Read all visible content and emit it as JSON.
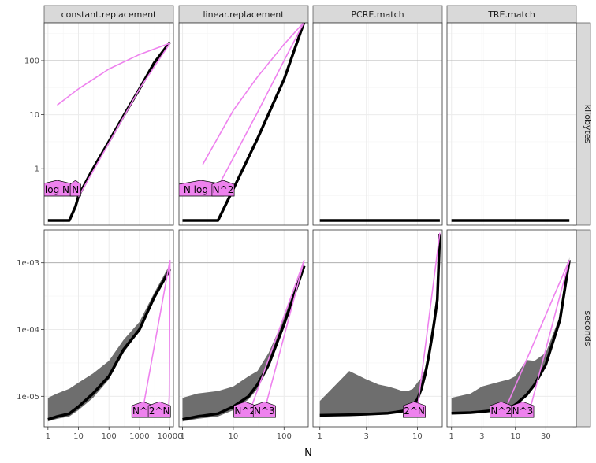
{
  "colors": {
    "strip_fill": "#d9d9d9",
    "panel_border": "#333333",
    "grid_major": "#ebebeb",
    "grid_minor": "#f5f5f5",
    "ref_line": "#b3b3b3",
    "data_line": "#000000",
    "ribbon": "#6e6e6e",
    "asymptote": "#ee82ee",
    "label_fill": "#ee82ee"
  },
  "chart_data": {
    "type": "line",
    "xlabel": "N",
    "x_scale": "log10",
    "y_scale": "log10",
    "columns": [
      "constant.replacement",
      "linear.replacement",
      "PCRE.match",
      "TRE.match"
    ],
    "rows": [
      "kilobytes",
      "seconds"
    ],
    "x_ticks": {
      "constant.replacement": [
        "1",
        "10",
        "100",
        "1000",
        "10000"
      ],
      "linear.replacement": [
        "1",
        "10",
        "100"
      ],
      "PCRE.match": [
        "1",
        "3",
        "10"
      ],
      "TRE.match": [
        "1",
        "3",
        "10",
        "30"
      ]
    },
    "x_limits": {
      "constant.replacement": [
        0.75,
        13000
      ],
      "linear.replacement": [
        0.85,
        300
      ],
      "PCRE.match": [
        0.85,
        18
      ],
      "TRE.match": [
        0.85,
        90
      ]
    },
    "y_ticks": {
      "kilobytes": [
        "1",
        "10",
        "100"
      ],
      "seconds": [
        "1e-05",
        "1e-04",
        "1e-03"
      ]
    },
    "y_limits": {
      "kilobytes": [
        0.09,
        500
      ],
      "seconds": [
        3.5e-06,
        0.0031
      ]
    },
    "panels": [
      {
        "col": "constant.replacement",
        "row": "kilobytes",
        "measured": {
          "x": [
            1,
            3,
            5,
            8,
            10,
            30,
            100,
            300,
            1000,
            3000,
            10000
          ],
          "y": [
            0.11,
            0.11,
            0.11,
            0.2,
            0.31,
            1.0,
            3.2,
            9.5,
            30,
            90,
            220
          ]
        },
        "asymptotes": [
          {
            "name": "log N",
            "x": [
              2,
              10,
              100,
              1000,
              10000
            ],
            "y": [
              15,
              30,
              70,
              130,
              210
            ]
          },
          {
            "name": "N",
            "x": [
              10,
              100,
              1000,
              10000
            ],
            "y": [
              0.3,
              3,
              30,
              210
            ]
          }
        ],
        "labels": [
          {
            "text": "log N",
            "x": 2,
            "y": 0.45
          },
          {
            "text": "N",
            "x": 8,
            "y": 0.45
          }
        ]
      },
      {
        "col": "linear.replacement",
        "row": "kilobytes",
        "measured": {
          "x": [
            1,
            3,
            5,
            10,
            30,
            100,
            250
          ],
          "y": [
            0.11,
            0.11,
            0.11,
            0.42,
            3.6,
            45,
            520
          ]
        },
        "asymptotes": [
          {
            "name": "N log N",
            "x": [
              2.5,
              10,
              30,
              100,
              250
            ],
            "y": [
              1.2,
              12,
              50,
              200,
              520
            ]
          },
          {
            "name": "N^2",
            "x": [
              5.5,
              30,
              100,
              250
            ],
            "y": [
              0.55,
              11,
              100,
              520
            ]
          }
        ],
        "labels": [
          {
            "text": "N log N",
            "x": 2.3,
            "y": 0.45
          },
          {
            "text": "N^2",
            "x": 6.3,
            "y": 0.45
          }
        ]
      },
      {
        "col": "PCRE.match",
        "row": "kilobytes",
        "measured": {
          "x": [
            1,
            17
          ],
          "y": [
            0.11,
            0.11
          ]
        },
        "asymptotes": [],
        "labels": []
      },
      {
        "col": "TRE.match",
        "row": "kilobytes",
        "measured": {
          "x": [
            1,
            70
          ],
          "y": [
            0.11,
            0.11
          ]
        },
        "asymptotes": [],
        "labels": []
      },
      {
        "col": "constant.replacement",
        "row": "seconds",
        "measured": {
          "x": [
            1,
            2,
            5,
            10,
            30,
            100,
            300,
            1000,
            3000,
            10000
          ],
          "y": [
            4.5e-06,
            5e-06,
            5.5e-06,
            7e-06,
            1.1e-05,
            2e-05,
            5e-05,
            0.0001,
            0.0003,
            0.0008
          ]
        },
        "ribbon": {
          "x": [
            1,
            2,
            5,
            10,
            30,
            100,
            300,
            1000,
            3000,
            10000
          ],
          "lo": [
            4.2e-06,
            4.6e-06,
            5e-06,
            6.2e-06,
            9.5e-06,
            1.8e-05,
            4.5e-05,
            9.5e-05,
            0.00028,
            0.00075
          ],
          "hi": [
            9.5e-06,
            1.1e-05,
            1.3e-05,
            1.6e-05,
            2.2e-05,
            3.4e-05,
            7e-05,
            0.00013,
            0.00035,
            0.00095
          ]
        },
        "asymptotes": [
          {
            "name": "N^3",
            "x": [
              1300,
              10000
            ],
            "y": [
              6.5e-06,
              0.0011
            ]
          },
          {
            "name": "2^N",
            "x": [
              9000,
              9500,
              10000
            ],
            "y": [
              6.5e-06,
              1e-05,
              0.0011
            ]
          }
        ],
        "labels": [
          {
            "text": "N^3",
            "x": 1300,
            "y": 6.5e-06
          },
          {
            "text": "2^N",
            "x": 4500,
            "y": 6.5e-06
          }
        ]
      },
      {
        "col": "linear.replacement",
        "row": "seconds",
        "measured": {
          "x": [
            1,
            2,
            5,
            10,
            20,
            30,
            50,
            100,
            250
          ],
          "y": [
            4.5e-06,
            5e-06,
            5.5e-06,
            7e-06,
            1e-05,
            1.5e-05,
            3e-05,
            0.00012,
            0.0009
          ]
        },
        "ribbon": {
          "x": [
            1,
            2,
            5,
            10,
            20,
            30,
            50,
            100,
            250
          ],
          "lo": [
            4.2e-06,
            4.6e-06,
            5e-06,
            6.2e-06,
            9e-06,
            1.3e-05,
            2.7e-05,
            0.00011,
            0.00085
          ],
          "hi": [
            9.5e-06,
            1.1e-05,
            1.2e-05,
            1.4e-05,
            2e-05,
            2.4e-05,
            4.5e-05,
            0.00015,
            0.001
          ]
        },
        "asymptotes": [
          {
            "name": "N^2",
            "x": [
              22,
              250
            ],
            "y": [
              6.5e-06,
              0.0011
            ]
          },
          {
            "name": "N^3",
            "x": [
              42,
              250
            ],
            "y": [
              6.5e-06,
              0.0011
            ]
          }
        ],
        "labels": [
          {
            "text": "N^2",
            "x": 17,
            "y": 6.5e-06
          },
          {
            "text": "N^3",
            "x": 41,
            "y": 6.5e-06
          }
        ]
      },
      {
        "col": "PCRE.match",
        "row": "seconds",
        "measured": {
          "x": [
            1,
            2,
            3,
            4,
            5,
            6,
            7,
            8,
            9,
            10,
            11,
            12,
            13,
            14,
            15,
            16,
            17
          ],
          "y": [
            5.2e-06,
            5.3e-06,
            5.4e-06,
            5.5e-06,
            5.6e-06,
            5.8e-06,
            6e-06,
            6.5e-06,
            7.5e-06,
            9e-06,
            1.3e-05,
            2.1e-05,
            3.8e-05,
            7.2e-05,
            0.00014,
            0.00028,
            0.0027
          ]
        },
        "ribbon": {
          "x": [
            1,
            2,
            3,
            4,
            5,
            6,
            7,
            8,
            9,
            10,
            11,
            12,
            13,
            14,
            15,
            16,
            17
          ],
          "lo": [
            5e-06,
            5.1e-06,
            5.2e-06,
            5.3e-06,
            5.4e-06,
            5.6e-06,
            5.8e-06,
            6.2e-06,
            7.2e-06,
            8.6e-06,
            1.25e-05,
            2e-05,
            3.7e-05,
            7e-05,
            0.000137,
            0.000275,
            0.0026
          ],
          "hi": [
            8.5e-06,
            2.4e-05,
            1.8e-05,
            1.5e-05,
            1.4e-05,
            1.3e-05,
            1.2e-05,
            1.2e-05,
            1.3e-05,
            1.6e-05,
            1.9e-05,
            2.6e-05,
            4.3e-05,
            7.8e-05,
            0.000147,
            0.00029,
            0.0028
          ]
        },
        "asymptotes": [
          {
            "name": "2^N",
            "x": [
              10,
              17
            ],
            "y": [
              6.5e-06,
              0.0028
            ]
          }
        ],
        "labels": [
          {
            "text": "2^N",
            "x": 9.3,
            "y": 6.5e-06
          }
        ]
      },
      {
        "col": "TRE.match",
        "row": "seconds",
        "measured": {
          "x": [
            1,
            2,
            3,
            5,
            8,
            10,
            15,
            20,
            30,
            50,
            70
          ],
          "y": [
            5.6e-06,
            5.7e-06,
            5.9e-06,
            6.2e-06,
            6.6e-06,
            7.5e-06,
            1.05e-05,
            1.5e-05,
            3e-05,
            0.00014,
            0.0011
          ]
        },
        "ribbon": {
          "x": [
            1,
            2,
            3,
            5,
            8,
            10,
            15,
            20,
            30,
            50,
            70
          ],
          "lo": [
            5.4e-06,
            5.5e-06,
            5.7e-06,
            6e-06,
            6.4e-06,
            7.2e-06,
            1e-05,
            1.45e-05,
            2.9e-05,
            0.000135,
            0.00105
          ],
          "hi": [
            9.5e-06,
            1.1e-05,
            1.4e-05,
            1.6e-05,
            1.8e-05,
            2e-05,
            3.5e-05,
            3.4e-05,
            4.5e-05,
            0.00016,
            0.0012
          ]
        },
        "asymptotes": [
          {
            "name": "N^2",
            "x": [
              7,
              70
            ],
            "y": [
              6.5e-06,
              0.0011
            ]
          },
          {
            "name": "N^3",
            "x": [
              17,
              70
            ],
            "y": [
              6.5e-06,
              0.0011
            ]
          }
        ],
        "labels": [
          {
            "text": "N^2",
            "x": 6,
            "y": 6.5e-06
          },
          {
            "text": "N^3",
            "x": 13,
            "y": 6.5e-06
          }
        ]
      }
    ]
  }
}
